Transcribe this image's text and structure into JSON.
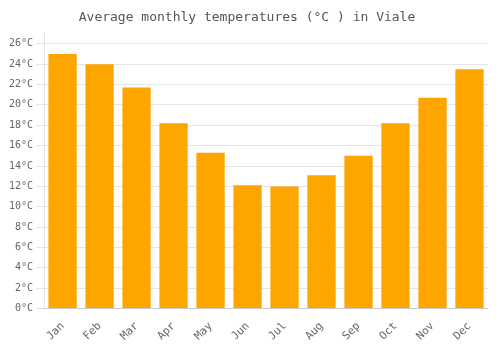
{
  "chart_data": {
    "type": "bar",
    "title": "Average monthly temperatures (°C ) in Viale",
    "categories": [
      "Jan",
      "Feb",
      "Mar",
      "Apr",
      "May",
      "Jun",
      "Jul",
      "Aug",
      "Sep",
      "Oct",
      "Nov",
      "Dec"
    ],
    "values": [
      25.0,
      24.0,
      21.7,
      18.2,
      15.3,
      12.1,
      12.0,
      13.1,
      15.0,
      18.2,
      20.7,
      23.5
    ],
    "color": "#FFA500",
    "ylim": [
      0,
      27
    ],
    "yticks": [
      {
        "value": 0,
        "label": "0°C"
      },
      {
        "value": 2,
        "label": "2°C"
      },
      {
        "value": 4,
        "label": "4°C"
      },
      {
        "value": 6,
        "label": "6°C"
      },
      {
        "value": 8,
        "label": "8°C"
      },
      {
        "value": 10,
        "label": "10°C"
      },
      {
        "value": 12,
        "label": "12°C"
      },
      {
        "value": 14,
        "label": "14°C"
      },
      {
        "value": 16,
        "label": "16°C"
      },
      {
        "value": 18,
        "label": "18°C"
      },
      {
        "value": 20,
        "label": "20°C"
      },
      {
        "value": 22,
        "label": "22°C"
      },
      {
        "value": 24,
        "label": "24°C"
      },
      {
        "value": 26,
        "label": "26°C"
      }
    ],
    "grid": true
  }
}
